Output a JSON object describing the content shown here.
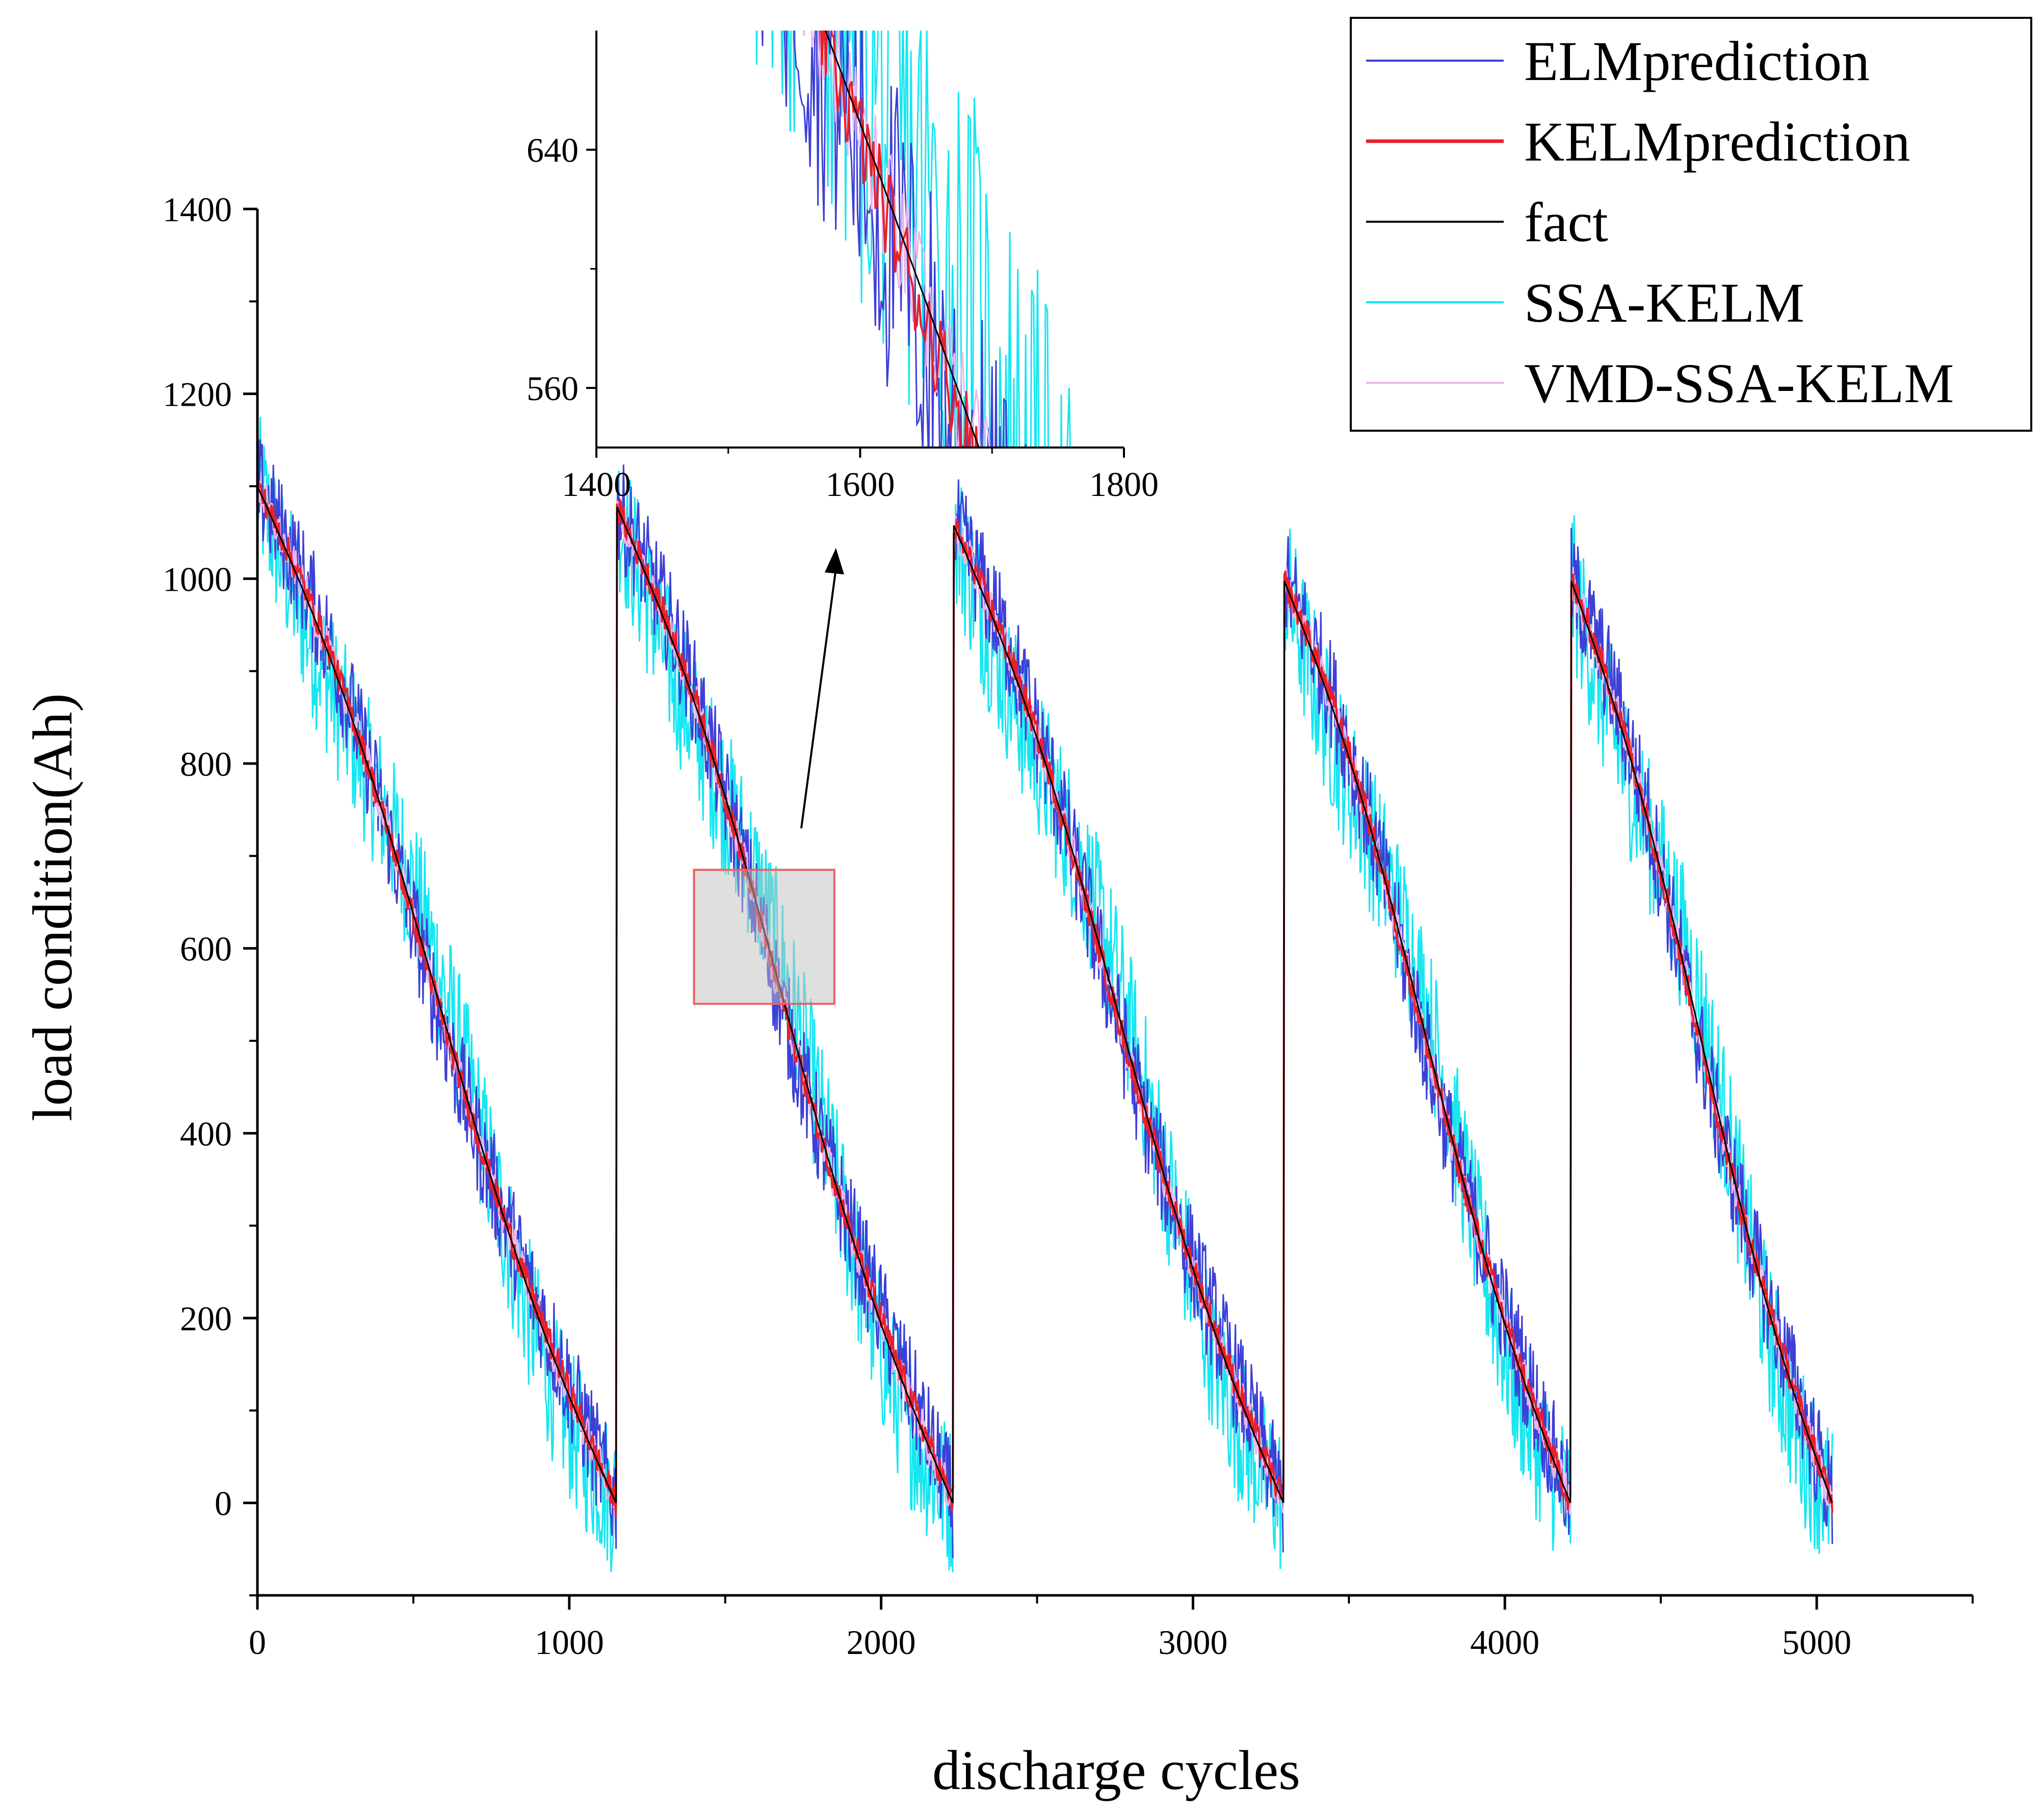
{
  "chart_data": {
    "type": "line",
    "xlabel": "discharge cycles",
    "ylabel": "load condition(Ah)",
    "xlim": [
      0,
      5500
    ],
    "ylim": [
      -100,
      1400
    ],
    "xticks": [
      0,
      1000,
      2000,
      3000,
      4000,
      5000
    ],
    "yticks": [
      0,
      200,
      400,
      600,
      800,
      1000,
      1200,
      1400
    ],
    "grid": false,
    "legend_position": "top-right",
    "cycles": [
      {
        "start": 0,
        "end": 1150,
        "start_value": 1100
      },
      {
        "start": 1150,
        "end": 2230,
        "start_value": 1080
      },
      {
        "start": 2230,
        "end": 3290,
        "start_value": 1060
      },
      {
        "start": 3290,
        "end": 4210,
        "start_value": 1000
      },
      {
        "start": 4210,
        "end": 5050,
        "start_value": 1000
      }
    ],
    "series": [
      {
        "name": "ELMprediction",
        "color": "#3d3fd6",
        "noise": 60,
        "bias": 12
      },
      {
        "name": "KELMprediction",
        "color": "#e8202a",
        "noise": 16,
        "bias": 6
      },
      {
        "name": "fact",
        "color": "#000000",
        "noise": 0,
        "bias": 0
      },
      {
        "name": "SSA-KELM",
        "color": "#17e6f0",
        "noise": 85,
        "bias": -32
      },
      {
        "name": "VMD-SSA-KELM",
        "color": "#eab8ee",
        "noise": 22,
        "bias": 4
      }
    ],
    "zoom_region": {
      "x": [
        1400,
        1850
      ],
      "y": [
        540,
        685
      ]
    },
    "inset": {
      "xlim": [
        1400,
        1800
      ],
      "ylim": [
        540,
        680
      ],
      "xticks": [
        1400,
        1600,
        1800
      ],
      "yticks": [
        560,
        640
      ]
    }
  }
}
